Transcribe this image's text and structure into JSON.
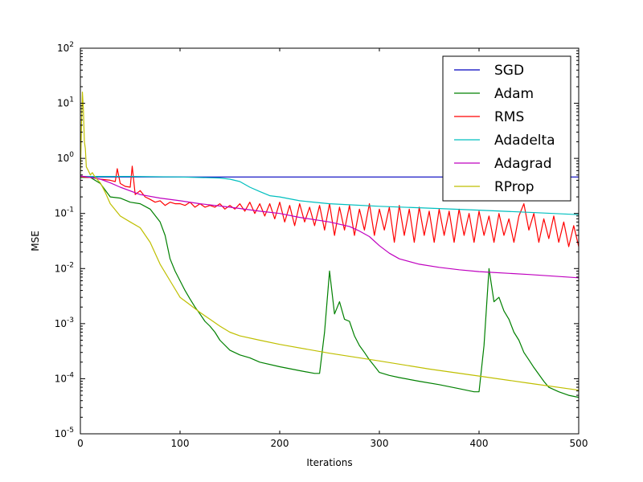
{
  "chart_data": {
    "type": "line",
    "title": "",
    "xlabel": "Iterations",
    "ylabel": "MSE",
    "xlim": [
      0,
      500
    ],
    "ylim": [
      1e-05,
      100
    ],
    "yscale": "log",
    "grid": false,
    "legend_position": "top-right",
    "x_ticks": [
      0,
      100,
      200,
      300,
      400,
      500
    ],
    "y_ticks": [
      {
        "value": 1e-05,
        "base": "10",
        "exp": "-5"
      },
      {
        "value": 0.0001,
        "base": "10",
        "exp": "-4"
      },
      {
        "value": 0.001,
        "base": "10",
        "exp": "-3"
      },
      {
        "value": 0.01,
        "base": "10",
        "exp": "-2"
      },
      {
        "value": 0.1,
        "base": "10",
        "exp": "-1"
      },
      {
        "value": 1,
        "base": "10",
        "exp": "0"
      },
      {
        "value": 10,
        "base": "10",
        "exp": "1"
      },
      {
        "value": 100,
        "base": "10",
        "exp": "2"
      }
    ],
    "series": [
      {
        "name": "SGD",
        "color": "#0000bf",
        "x": [
          0,
          100,
          200,
          300,
          400,
          500
        ],
        "y": [
          0.46,
          0.46,
          0.46,
          0.46,
          0.46,
          0.46
        ]
      },
      {
        "name": "Adam",
        "color": "#008000",
        "x": [
          0,
          10,
          20,
          30,
          40,
          50,
          60,
          70,
          80,
          85,
          90,
          95,
          100,
          105,
          110,
          115,
          120,
          125,
          130,
          135,
          140,
          150,
          160,
          170,
          180,
          200,
          220,
          235,
          240,
          245,
          250,
          255,
          260,
          265,
          270,
          275,
          280,
          285,
          290,
          295,
          300,
          310,
          320,
          340,
          360,
          380,
          395,
          400,
          405,
          410,
          415,
          420,
          425,
          430,
          435,
          440,
          445,
          450,
          455,
          460,
          465,
          470,
          480,
          490,
          500
        ],
        "y": [
          0.45,
          0.45,
          0.35,
          0.2,
          0.19,
          0.16,
          0.15,
          0.12,
          0.07,
          0.04,
          0.015,
          0.009,
          0.006,
          0.004,
          0.0028,
          0.002,
          0.0015,
          0.0011,
          0.0009,
          0.0007,
          0.0005,
          0.00033,
          0.00027,
          0.00024,
          0.0002,
          0.000165,
          0.00014,
          0.000125,
          0.000125,
          0.0007,
          0.009,
          0.0015,
          0.0025,
          0.0012,
          0.0011,
          0.0006,
          0.0004,
          0.0003,
          0.00022,
          0.00017,
          0.00013,
          0.000115,
          0.000105,
          9e-05,
          7.8e-05,
          6.6e-05,
          5.8e-05,
          5.8e-05,
          0.0004,
          0.01,
          0.0025,
          0.003,
          0.0017,
          0.0012,
          0.0007,
          0.0005,
          0.0003,
          0.00022,
          0.00016,
          0.00012,
          9e-05,
          7e-05,
          5.8e-05,
          5e-05,
          4.6e-05
        ]
      },
      {
        "name": "RMS",
        "color": "#ff0000",
        "x": [
          0,
          10,
          20,
          30,
          35,
          37,
          40,
          45,
          50,
          52,
          55,
          60,
          65,
          70,
          75,
          80,
          85,
          90,
          95,
          100,
          105,
          110,
          115,
          120,
          125,
          130,
          135,
          140,
          145,
          150,
          155,
          160,
          165,
          170,
          175,
          180,
          185,
          190,
          195,
          200,
          205,
          210,
          215,
          220,
          225,
          230,
          235,
          240,
          245,
          250,
          255,
          260,
          265,
          270,
          275,
          280,
          285,
          290,
          295,
          300,
          305,
          310,
          315,
          320,
          325,
          330,
          335,
          340,
          345,
          350,
          355,
          360,
          365,
          370,
          375,
          380,
          385,
          390,
          395,
          400,
          405,
          410,
          415,
          420,
          425,
          430,
          435,
          440,
          445,
          450,
          455,
          460,
          465,
          470,
          475,
          480,
          485,
          490,
          495,
          500
        ],
        "y": [
          0.46,
          0.45,
          0.42,
          0.4,
          0.38,
          0.65,
          0.35,
          0.31,
          0.3,
          0.72,
          0.22,
          0.26,
          0.2,
          0.18,
          0.16,
          0.17,
          0.14,
          0.16,
          0.15,
          0.15,
          0.14,
          0.16,
          0.13,
          0.15,
          0.13,
          0.14,
          0.13,
          0.15,
          0.12,
          0.14,
          0.12,
          0.15,
          0.11,
          0.16,
          0.1,
          0.15,
          0.09,
          0.15,
          0.08,
          0.16,
          0.07,
          0.14,
          0.06,
          0.15,
          0.07,
          0.13,
          0.06,
          0.14,
          0.05,
          0.15,
          0.04,
          0.13,
          0.05,
          0.14,
          0.04,
          0.12,
          0.05,
          0.15,
          0.04,
          0.12,
          0.05,
          0.13,
          0.03,
          0.14,
          0.04,
          0.12,
          0.03,
          0.13,
          0.04,
          0.11,
          0.03,
          0.12,
          0.04,
          0.11,
          0.03,
          0.12,
          0.04,
          0.1,
          0.03,
          0.11,
          0.04,
          0.09,
          0.03,
          0.1,
          0.04,
          0.08,
          0.03,
          0.09,
          0.15,
          0.05,
          0.1,
          0.03,
          0.08,
          0.035,
          0.09,
          0.03,
          0.07,
          0.025,
          0.06,
          0.025
        ]
      },
      {
        "name": "Adadelta",
        "color": "#00bfbf",
        "x": [
          0,
          50,
          100,
          140,
          150,
          160,
          170,
          180,
          190,
          200,
          220,
          250,
          300,
          350,
          400,
          450,
          500
        ],
        "y": [
          0.47,
          0.47,
          0.46,
          0.44,
          0.42,
          0.38,
          0.3,
          0.25,
          0.21,
          0.2,
          0.17,
          0.15,
          0.135,
          0.125,
          0.115,
          0.105,
          0.095
        ]
      },
      {
        "name": "Adagrad",
        "color": "#bf00bf",
        "x": [
          0,
          10,
          20,
          30,
          40,
          60,
          80,
          100,
          120,
          150,
          180,
          200,
          220,
          250,
          270,
          280,
          290,
          300,
          310,
          320,
          340,
          360,
          380,
          400,
          450,
          500
        ],
        "y": [
          0.48,
          0.45,
          0.42,
          0.36,
          0.3,
          0.22,
          0.19,
          0.17,
          0.15,
          0.13,
          0.11,
          0.1,
          0.085,
          0.07,
          0.058,
          0.048,
          0.038,
          0.026,
          0.019,
          0.015,
          0.012,
          0.0105,
          0.0095,
          0.0088,
          0.0078,
          0.0068
        ]
      },
      {
        "name": "RProp",
        "color": "#bfbf00",
        "x": [
          0,
          1,
          2,
          3,
          4,
          5,
          6,
          8,
          10,
          12,
          15,
          20,
          25,
          30,
          40,
          50,
          60,
          70,
          80,
          90,
          100,
          110,
          120,
          130,
          140,
          150,
          160,
          180,
          200,
          250,
          300,
          350,
          400,
          450,
          500
        ],
        "y": [
          0.5,
          3,
          16,
          8,
          2,
          1.5,
          0.7,
          0.6,
          0.5,
          0.55,
          0.45,
          0.36,
          0.24,
          0.15,
          0.09,
          0.07,
          0.055,
          0.03,
          0.012,
          0.006,
          0.003,
          0.0022,
          0.0016,
          0.0012,
          0.0009,
          0.0007,
          0.0006,
          0.0005,
          0.00042,
          0.00029,
          0.00021,
          0.00015,
          0.000112,
          8.3e-05,
          6.2e-05
        ]
      }
    ]
  }
}
